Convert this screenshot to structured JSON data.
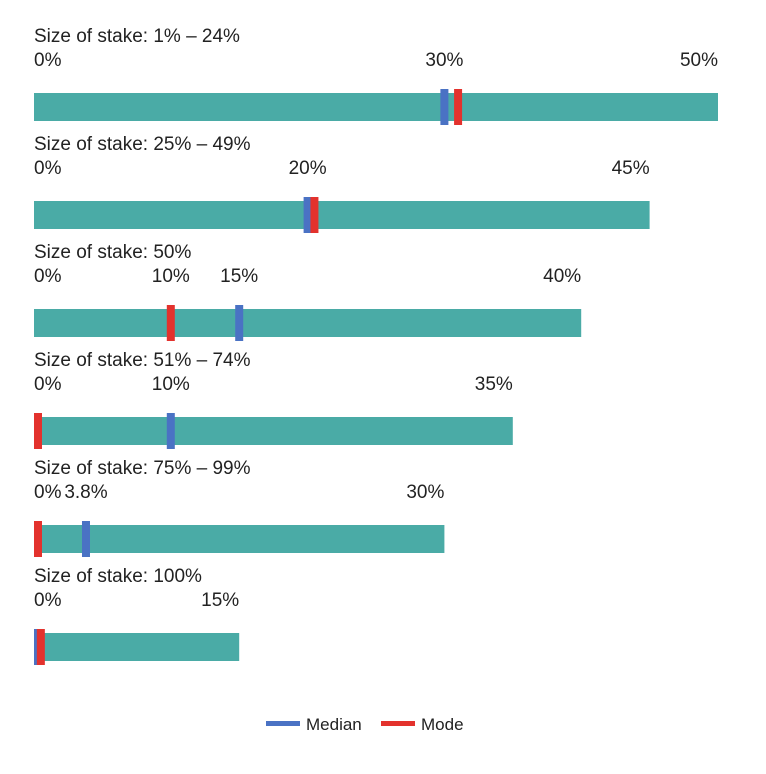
{
  "chart_data": {
    "type": "bar",
    "x_unit": "%",
    "colors": {
      "bar": "#4aaba6",
      "median": "#4a72c4",
      "mode": "#e3322d"
    },
    "legend": {
      "placement": "bottom-center",
      "items": [
        {
          "name": "Median",
          "color": "#4a72c4"
        },
        {
          "name": "Mode",
          "color": "#e3322d"
        }
      ]
    },
    "panels": [
      {
        "title": "Size of stake: 1% – 24%",
        "range": [
          0,
          50
        ],
        "median": 30,
        "mode": 31,
        "tick_labels": [
          {
            "value": 0,
            "text": "0%"
          },
          {
            "value": 30,
            "text": "30%"
          },
          {
            "value": 50,
            "text": "50%"
          }
        ]
      },
      {
        "title": "Size of stake: 25% – 49%",
        "range": [
          0,
          45
        ],
        "median": 20,
        "mode": 20.5,
        "tick_labels": [
          {
            "value": 0,
            "text": "0%"
          },
          {
            "value": 20,
            "text": "20%"
          },
          {
            "value": 45,
            "text": "45%"
          }
        ]
      },
      {
        "title": "Size of stake: 50%",
        "range": [
          0,
          40
        ],
        "median": 15,
        "mode": 10,
        "tick_labels": [
          {
            "value": 0,
            "text": "0%"
          },
          {
            "value": 10,
            "text": "10%"
          },
          {
            "value": 15,
            "text": "15%"
          },
          {
            "value": 40,
            "text": "40%"
          }
        ]
      },
      {
        "title": "Size of stake: 51% – 74%",
        "range": [
          0,
          35
        ],
        "median": 10,
        "mode": 0,
        "tick_labels": [
          {
            "value": 0,
            "text": "0%"
          },
          {
            "value": 10,
            "text": "10%"
          },
          {
            "value": 35,
            "text": "35%"
          }
        ]
      },
      {
        "title": "Size of stake: 75% – 99%",
        "range": [
          0,
          30
        ],
        "median": 3.8,
        "mode": 0,
        "tick_labels": [
          {
            "value": 0,
            "text": "0%"
          },
          {
            "value": 3.8,
            "text": "3.8%"
          },
          {
            "value": 30,
            "text": "30%"
          }
        ]
      },
      {
        "title": "Size of stake: 100%",
        "range": [
          0,
          15
        ],
        "median": 0,
        "mode": 0.5,
        "tick_labels": [
          {
            "value": 0,
            "text": "0%"
          },
          {
            "value": 15,
            "text": "15%"
          }
        ]
      }
    ]
  }
}
